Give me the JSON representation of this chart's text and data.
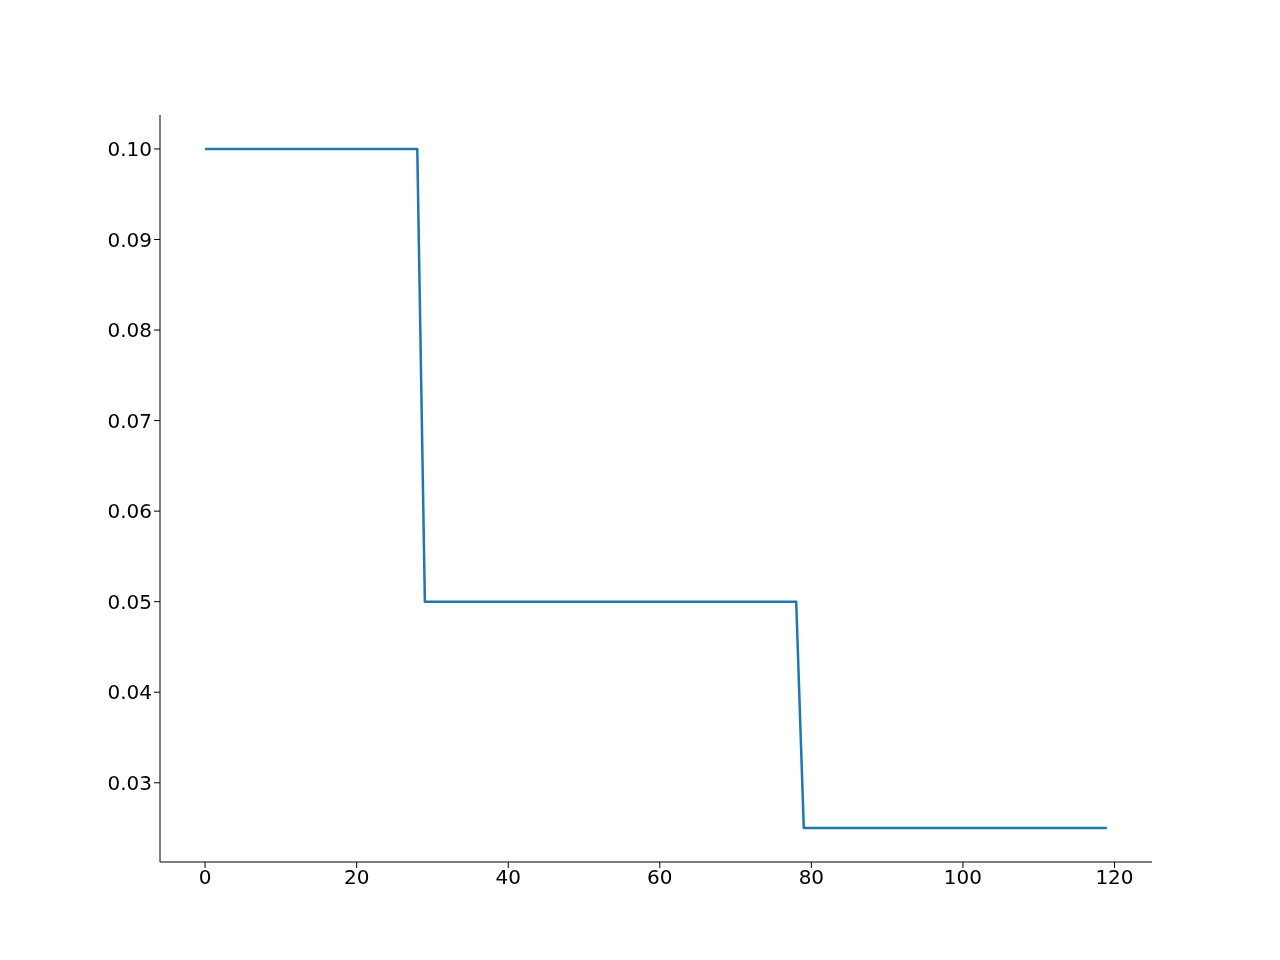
{
  "chart_data": {
    "type": "line",
    "x": [
      0,
      28,
      29,
      78,
      79,
      119
    ],
    "series": [
      {
        "color": "#1f77b4",
        "values": [
          0.1,
          0.1,
          0.05,
          0.05,
          0.025,
          0.025
        ]
      }
    ],
    "xlim": [
      -5.95,
      124.95
    ],
    "xticks": [
      0,
      20,
      40,
      60,
      80,
      100,
      120
    ],
    "ylim": [
      0.02125,
      0.10375
    ],
    "yticks": [
      0.03,
      0.04,
      0.05,
      0.06,
      0.07,
      0.08,
      0.09,
      {
        "value": 0.1,
        "label": "0.10"
      }
    ],
    "marker": "none",
    "line_style": "solid"
  }
}
